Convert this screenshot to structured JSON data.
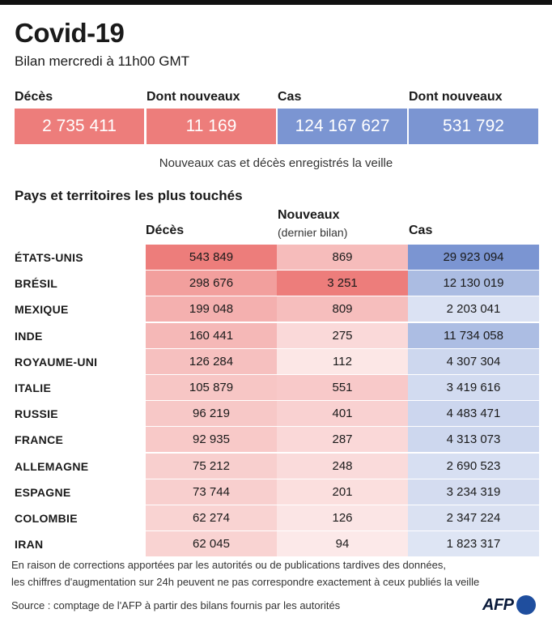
{
  "title": "Covid-19",
  "subtitle": "Bilan mercredi à 11h00 GMT",
  "stats": [
    {
      "label": "Décès",
      "value": "2 735 411",
      "color": "#ed7d7b"
    },
    {
      "label": "Dont nouveaux",
      "value": "11 169",
      "color": "#ed7d7b"
    },
    {
      "label": "Cas",
      "value": "124 167 627",
      "color": "#7b95d2"
    },
    {
      "label": "Dont nouveaux",
      "value": "531 792",
      "color": "#7b95d2"
    }
  ],
  "note": "Nouveaux cas et décès enregistrés la veille",
  "table": {
    "section_title": "Pays et territoires les plus touchés",
    "headers": {
      "deaths": "Décès",
      "new": "Nouveaux",
      "new_sub": "(dernier bilan)",
      "cases": "Cas"
    },
    "rows": [
      {
        "country": "ÉTATS-UNIS",
        "deaths": "543 849",
        "new": "869",
        "cases": "29 923 094",
        "deaths_n": 543849,
        "new_n": 869,
        "cases_n": 29923094
      },
      {
        "country": "BRÉSIL",
        "deaths": "298 676",
        "new": "3 251",
        "cases": "12 130 019",
        "deaths_n": 298676,
        "new_n": 3251,
        "cases_n": 12130019
      },
      {
        "country": "MEXIQUE",
        "deaths": "199 048",
        "new": "809",
        "cases": "2 203 041",
        "deaths_n": 199048,
        "new_n": 809,
        "cases_n": 2203041
      },
      {
        "country": "INDE",
        "deaths": "160 441",
        "new": "275",
        "cases": "11 734 058",
        "deaths_n": 160441,
        "new_n": 275,
        "cases_n": 11734058
      },
      {
        "country": "ROYAUME-UNI",
        "deaths": "126 284",
        "new": "112",
        "cases": "4 307 304",
        "deaths_n": 126284,
        "new_n": 112,
        "cases_n": 4307304
      },
      {
        "country": "ITALIE",
        "deaths": "105 879",
        "new": "551",
        "cases": "3 419 616",
        "deaths_n": 105879,
        "new_n": 551,
        "cases_n": 3419616
      },
      {
        "country": "RUSSIE",
        "deaths": "96 219",
        "new": "401",
        "cases": "4 483 471",
        "deaths_n": 96219,
        "new_n": 401,
        "cases_n": 4483471
      },
      {
        "country": "FRANCE",
        "deaths": "92 935",
        "new": "287",
        "cases": "4 313 073",
        "deaths_n": 92935,
        "new_n": 287,
        "cases_n": 4313073
      },
      {
        "country": "ALLEMAGNE",
        "deaths": "75 212",
        "new": "248",
        "cases": "2 690 523",
        "deaths_n": 75212,
        "new_n": 248,
        "cases_n": 2690523
      },
      {
        "country": "ESPAGNE",
        "deaths": "73 744",
        "new": "201",
        "cases": "3 234 319",
        "deaths_n": 73744,
        "new_n": 201,
        "cases_n": 3234319
      },
      {
        "country": "COLOMBIE",
        "deaths": "62 274",
        "new": "126",
        "cases": "2 347 224",
        "deaths_n": 62274,
        "new_n": 126,
        "cases_n": 2347224
      },
      {
        "country": "IRAN",
        "deaths": "62 045",
        "new": "94",
        "cases": "1 823 317",
        "deaths_n": 62045,
        "new_n": 94,
        "cases_n": 1823317
      }
    ]
  },
  "colors": {
    "deaths_accent": "#ed7d7b",
    "cases_accent": "#7b95d2"
  },
  "footnote": [
    "En raison de corrections apportées par les autorités ou de publications tardives des données,",
    "les chiffres d'augmentation sur 24h peuvent ne pas correspondre exactement à ceux publiés la veille"
  ],
  "source": "Source : comptage de l'AFP à partir des bilans fournis par les autorités",
  "logo": "AFP"
}
